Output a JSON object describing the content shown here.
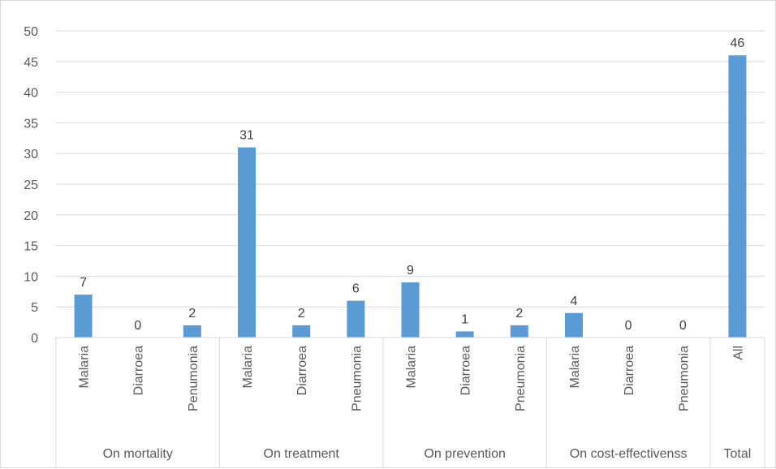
{
  "chart_data": {
    "type": "bar",
    "title": "",
    "xlabel": "",
    "ylabel": "",
    "ylim": [
      0,
      50
    ],
    "yticks": [
      0,
      5,
      10,
      15,
      20,
      25,
      30,
      35,
      40,
      45,
      50
    ],
    "grid": true,
    "legend": "none",
    "data_labels": true,
    "bar_color": "#5b9bd5",
    "groups": [
      {
        "name": "On mortality",
        "categories": [
          "Malaria",
          "Diarroea",
          "Penumonia"
        ],
        "values": [
          7,
          0,
          2
        ]
      },
      {
        "name": "On treatment",
        "categories": [
          "Malaria",
          "Diarroea",
          "Pneumonia"
        ],
        "values": [
          31,
          2,
          6
        ]
      },
      {
        "name": "On prevention",
        "categories": [
          "Malaria",
          "Diarroea",
          "Pneumonia"
        ],
        "values": [
          9,
          1,
          2
        ]
      },
      {
        "name": "On cost-effectivenss",
        "categories": [
          "Malaria",
          "Diarroea",
          "Pneumonia"
        ],
        "values": [
          4,
          0,
          0
        ]
      },
      {
        "name": "Total",
        "categories": [
          "All"
        ],
        "values": [
          46
        ]
      }
    ]
  }
}
